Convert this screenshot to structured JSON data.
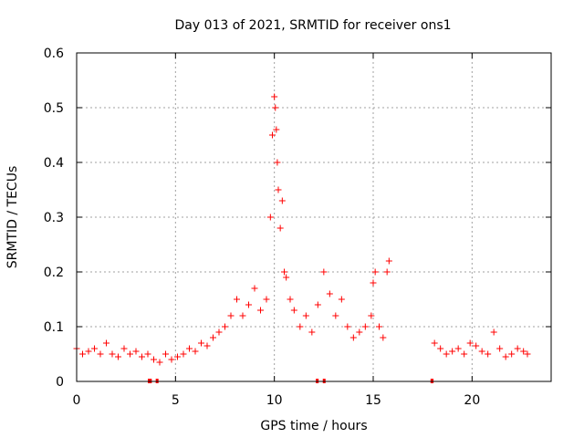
{
  "chart_data": {
    "type": "scatter",
    "title": "Day 013 of 2021, SRMTID for receiver ons1",
    "xlabel": "GPS time / hours",
    "ylabel": "SRMTID / TECUs",
    "xlim": [
      0,
      24
    ],
    "ylim": [
      0,
      0.6
    ],
    "xticks": [
      0,
      5,
      10,
      15,
      20
    ],
    "xtick_labels": [
      "0",
      "5",
      "10",
      "15",
      "20"
    ],
    "yticks": [
      0,
      0.1,
      0.2,
      0.3,
      0.4,
      0.5,
      0.6
    ],
    "ytick_labels": [
      "0",
      "0.1",
      "0.2",
      "0.3",
      "0.4",
      "0.5",
      "0.6"
    ],
    "grid": true,
    "marker": "+",
    "marker_color": "#ff0000",
    "series": [
      {
        "name": "SRMTID",
        "x": [
          0.0,
          0.3,
          0.6,
          0.9,
          1.2,
          1.5,
          1.8,
          2.1,
          2.4,
          2.7,
          3.0,
          3.3,
          3.6,
          3.9,
          4.2,
          4.5,
          4.8,
          5.1,
          5.4,
          5.7,
          6.0,
          6.3,
          6.6,
          6.9,
          7.2,
          7.5,
          7.8,
          8.1,
          8.4,
          8.7,
          9.0,
          9.3,
          9.6,
          9.8,
          9.9,
          10.0,
          10.05,
          10.1,
          10.15,
          10.2,
          10.3,
          10.4,
          10.5,
          10.6,
          10.8,
          11.0,
          11.3,
          11.6,
          11.9,
          12.2,
          12.5,
          12.8,
          13.1,
          13.4,
          13.7,
          14.0,
          14.3,
          14.6,
          14.9,
          15.0,
          15.1,
          15.3,
          15.5,
          15.7,
          15.8,
          18.1,
          18.4,
          18.7,
          19.0,
          19.3,
          19.6,
          19.9,
          20.2,
          20.5,
          20.8,
          21.1,
          21.4,
          21.7,
          22.0,
          22.3,
          22.6,
          22.8
        ],
        "y": [
          0.06,
          0.05,
          0.055,
          0.06,
          0.05,
          0.07,
          0.05,
          0.045,
          0.06,
          0.05,
          0.055,
          0.045,
          0.05,
          0.04,
          0.035,
          0.05,
          0.04,
          0.045,
          0.05,
          0.06,
          0.055,
          0.07,
          0.065,
          0.08,
          0.09,
          0.1,
          0.12,
          0.15,
          0.12,
          0.14,
          0.17,
          0.13,
          0.15,
          0.3,
          0.45,
          0.52,
          0.5,
          0.46,
          0.4,
          0.35,
          0.28,
          0.33,
          0.2,
          0.19,
          0.15,
          0.13,
          0.1,
          0.12,
          0.09,
          0.14,
          0.2,
          0.16,
          0.12,
          0.15,
          0.1,
          0.08,
          0.09,
          0.1,
          0.12,
          0.18,
          0.2,
          0.1,
          0.08,
          0.2,
          0.22,
          0.07,
          0.06,
          0.05,
          0.055,
          0.06,
          0.05,
          0.07,
          0.065,
          0.055,
          0.05,
          0.09,
          0.06,
          0.045,
          0.05,
          0.06,
          0.055,
          0.05
        ]
      }
    ],
    "data_gaps": [
      {
        "from": 3.6,
        "to": 3.8
      },
      {
        "from": 4.0,
        "to": 4.1
      },
      {
        "from": 12.1,
        "to": 12.2
      },
      {
        "from": 12.45,
        "to": 12.55
      },
      {
        "from": 17.9,
        "to": 18.05
      }
    ]
  }
}
